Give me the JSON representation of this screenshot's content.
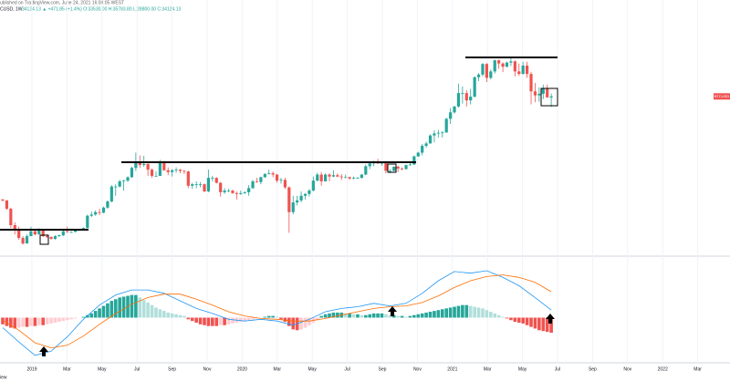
{
  "header": {
    "published": "ublished on TradingView.com, June 24, 2021 16:08:05 WEST",
    "symbol": "CUSD, 1W",
    "quote": "34124.13 ▲ +471.85 (+1.4%) O:33530.00 H:35783.80 L:28800.00 C:34124.13"
  },
  "footer": "iew",
  "chart_data": {
    "type": "candlestick",
    "log_scale": true,
    "ylim": [
      2650,
      161000
    ],
    "up_color": "#26a69a",
    "down_color": "#ef5350",
    "price_label": "BTCUSD",
    "candles": [
      [
        6500,
        6550,
        6300,
        6400
      ],
      [
        6400,
        6450,
        5500,
        5600
      ],
      [
        5600,
        5700,
        4100,
        4300
      ],
      [
        4300,
        4500,
        3700,
        4000
      ],
      [
        4000,
        4200,
        3400,
        3500
      ],
      [
        3500,
        3600,
        3150,
        3200
      ],
      [
        3200,
        3700,
        3200,
        3600
      ],
      [
        3600,
        4200,
        3600,
        3900
      ],
      [
        3900,
        4000,
        3650,
        3700
      ],
      [
        3700,
        4100,
        3700,
        4000
      ],
      [
        4000,
        4050,
        3550,
        3600
      ],
      [
        3600,
        3700,
        3500,
        3550
      ],
      [
        3550,
        3600,
        3400,
        3450
      ],
      [
        3450,
        3650,
        3400,
        3600
      ],
      [
        3600,
        3700,
        3550,
        3650
      ],
      [
        3650,
        4000,
        3600,
        3900
      ],
      [
        3900,
        4200,
        3800,
        3850
      ],
      [
        3850,
        3900,
        3800,
        3850
      ],
      [
        3850,
        4000,
        3840,
        3950
      ],
      [
        3950,
        4050,
        3900,
        4000
      ],
      [
        4000,
        4150,
        3950,
        4100
      ],
      [
        4100,
        5100,
        4100,
        5000
      ],
      [
        5000,
        5350,
        4900,
        5100
      ],
      [
        5100,
        5450,
        5000,
        5300
      ],
      [
        5300,
        5600,
        5050,
        5250
      ],
      [
        5250,
        5800,
        5200,
        5700
      ],
      [
        5700,
        6400,
        5600,
        6300
      ],
      [
        6300,
        8200,
        6200,
        8000
      ],
      [
        8000,
        8300,
        6900,
        8000
      ],
      [
        8000,
        8900,
        7900,
        8700
      ],
      [
        8700,
        8900,
        7500,
        8800
      ],
      [
        8800,
        9400,
        8600,
        9300
      ],
      [
        9300,
        11000,
        9200,
        10800
      ],
      [
        10800,
        13800,
        10300,
        12000
      ],
      [
        12000,
        13200,
        10800,
        11300
      ],
      [
        11300,
        13100,
        11000,
        11500
      ],
      [
        11500,
        11600,
        9500,
        10500
      ],
      [
        10500,
        10700,
        9200,
        9500
      ],
      [
        9500,
        10200,
        9400,
        9500
      ],
      [
        9500,
        12300,
        9500,
        11800
      ],
      [
        11800,
        12100,
        10300,
        10400
      ],
      [
        10400,
        10900,
        9600,
        10100
      ],
      [
        10100,
        10600,
        9400,
        10400
      ],
      [
        10400,
        10900,
        10000,
        10500
      ],
      [
        10500,
        10600,
        9900,
        10300
      ],
      [
        10300,
        10400,
        9800,
        10200
      ],
      [
        10200,
        10300,
        7800,
        8100
      ],
      [
        8100,
        8500,
        7700,
        8300
      ],
      [
        8300,
        8700,
        7800,
        8300
      ],
      [
        8300,
        8600,
        7900,
        8300
      ],
      [
        8300,
        8400,
        7300,
        7400
      ],
      [
        7400,
        10500,
        7300,
        9200
      ],
      [
        9200,
        9500,
        8700,
        9200
      ],
      [
        9200,
        9300,
        8400,
        8500
      ],
      [
        8500,
        8600,
        6800,
        7300
      ],
      [
        7300,
        7800,
        7100,
        7500
      ],
      [
        7500,
        7700,
        7300,
        7500
      ],
      [
        7500,
        7600,
        7100,
        7200
      ],
      [
        7200,
        7400,
        6500,
        7100
      ],
      [
        7100,
        7500,
        7000,
        7200
      ],
      [
        7200,
        7400,
        7100,
        7300
      ],
      [
        7300,
        8200,
        6900,
        7800
      ],
      [
        7800,
        8900,
        7700,
        8700
      ],
      [
        8700,
        9200,
        8500,
        8600
      ],
      [
        8600,
        9400,
        8300,
        9300
      ],
      [
        9300,
        9900,
        9200,
        9800
      ],
      [
        9800,
        10500,
        9700,
        9900
      ],
      [
        9900,
        10200,
        9300,
        9700
      ],
      [
        9700,
        9800,
        8500,
        8800
      ],
      [
        8800,
        9200,
        8400,
        8900
      ],
      [
        8900,
        9200,
        7700,
        7900
      ],
      [
        7900,
        8000,
        3800,
        5300
      ],
      [
        5300,
        6900,
        5100,
        6200
      ],
      [
        6200,
        6900,
        5900,
        6400
      ],
      [
        6400,
        7400,
        6200,
        6900
      ],
      [
        6900,
        7200,
        6500,
        7100
      ],
      [
        7100,
        7700,
        6800,
        7500
      ],
      [
        7500,
        9400,
        7400,
        8800
      ],
      [
        8800,
        10000,
        8700,
        9700
      ],
      [
        9700,
        10100,
        8100,
        8700
      ],
      [
        8700,
        9900,
        8700,
        9700
      ],
      [
        9700,
        9900,
        8700,
        9400
      ],
      [
        9400,
        10400,
        9300,
        9600
      ],
      [
        9600,
        9900,
        9300,
        9400
      ],
      [
        9400,
        9800,
        8900,
        9300
      ],
      [
        9300,
        9700,
        9200,
        9300
      ],
      [
        9300,
        9400,
        8900,
        9100
      ],
      [
        9100,
        9400,
        9000,
        9200
      ],
      [
        9200,
        9300,
        9100,
        9200
      ],
      [
        9200,
        9800,
        9100,
        9700
      ],
      [
        9700,
        11400,
        9600,
        11100
      ],
      [
        11100,
        12000,
        10600,
        11600
      ],
      [
        11600,
        12100,
        11100,
        11800
      ],
      [
        11800,
        12500,
        11500,
        11600
      ],
      [
        11600,
        11800,
        11200,
        11700
      ],
      [
        11700,
        12000,
        9900,
        10300
      ],
      [
        10300,
        10600,
        9900,
        10300
      ],
      [
        10300,
        11100,
        10200,
        11000
      ],
      [
        11000,
        11200,
        10100,
        10700
      ],
      [
        10700,
        10900,
        10400,
        10600
      ],
      [
        10600,
        11400,
        10500,
        11300
      ],
      [
        11300,
        11700,
        11200,
        11400
      ],
      [
        11400,
        13200,
        11300,
        13000
      ],
      [
        13000,
        14000,
        12900,
        13800
      ],
      [
        13800,
        15900,
        13200,
        15400
      ],
      [
        15400,
        16500,
        14900,
        16000
      ],
      [
        16000,
        18500,
        16000,
        18200
      ],
      [
        18200,
        19800,
        16300,
        18800
      ],
      [
        18800,
        19900,
        17600,
        19000
      ],
      [
        19000,
        19500,
        17600,
        19100
      ],
      [
        19100,
        24200,
        19000,
        23800
      ],
      [
        23800,
        28300,
        21900,
        26400
      ],
      [
        26400,
        29300,
        25900,
        29000
      ],
      [
        29000,
        41900,
        28600,
        36000
      ],
      [
        36000,
        40100,
        30400,
        36000
      ],
      [
        36000,
        37800,
        29000,
        32000
      ],
      [
        32000,
        38500,
        30000,
        34000
      ],
      [
        34000,
        47000,
        33500,
        46500
      ],
      [
        46500,
        49700,
        43700,
        48500
      ],
      [
        48500,
        58300,
        47000,
        57500
      ],
      [
        57500,
        58300,
        43000,
        46000
      ],
      [
        46000,
        52600,
        44900,
        51000
      ],
      [
        51000,
        61800,
        49300,
        61000
      ],
      [
        61000,
        61700,
        53300,
        58000
      ],
      [
        58000,
        59000,
        50400,
        55000
      ],
      [
        55000,
        59800,
        54600,
        58800
      ],
      [
        58800,
        64800,
        55600,
        60000
      ],
      [
        60000,
        61000,
        47000,
        51000
      ],
      [
        51000,
        57900,
        47500,
        49000
      ],
      [
        49000,
        59500,
        48500,
        56000
      ],
      [
        56000,
        59600,
        46000,
        49000
      ],
      [
        49000,
        50700,
        30000,
        37000
      ],
      [
        37000,
        42400,
        31100,
        34700
      ],
      [
        34700,
        39500,
        31300,
        35600
      ],
      [
        35600,
        41300,
        32700,
        39000
      ],
      [
        39000,
        41300,
        33300,
        33650
      ],
      [
        33530,
        35783.8,
        28800,
        34124.13
      ]
    ],
    "x_labels": [
      "2019",
      "Mar",
      "May",
      "Jul",
      "Sep",
      "Nov",
      "2020",
      "Mar",
      "May",
      "Jul",
      "Sep",
      "Nov",
      "2021",
      "Mar",
      "May",
      "Jul",
      "Sep",
      "Nov",
      "2022",
      "Mar"
    ],
    "macd": {
      "ylim": [
        -56,
        69
      ],
      "histogram": [
        -8,
        -10,
        -12,
        -13,
        -12,
        -11,
        -11,
        -10,
        -10,
        -9,
        -9,
        -8,
        -7,
        -6,
        -5,
        -4,
        -3,
        -2,
        -1,
        0,
        1,
        3,
        5,
        8,
        11,
        14,
        17,
        20,
        22,
        24,
        25,
        26,
        27,
        27,
        24,
        21,
        18,
        15,
        12,
        10,
        8,
        6,
        5,
        4,
        3,
        2,
        -2,
        -4,
        -6,
        -8,
        -9,
        -10,
        -10,
        -10,
        -9,
        -9,
        -8,
        -7,
        -6,
        -5,
        -4,
        -3,
        -2,
        -1,
        0,
        1,
        2,
        2,
        1,
        -2,
        -5,
        -10,
        -14,
        -15,
        -14,
        -12,
        -9,
        -6,
        -3,
        2,
        4,
        5,
        6,
        6,
        6,
        5,
        5,
        4,
        4,
        3,
        3,
        4,
        5,
        5,
        5,
        4,
        3,
        3,
        2,
        2,
        1,
        2,
        3,
        4,
        5,
        6,
        7,
        8,
        9,
        10,
        11,
        12,
        13,
        14,
        15,
        15,
        14,
        13,
        12,
        11,
        9,
        7,
        5,
        3,
        1,
        -1,
        -3,
        -5,
        -6,
        -7,
        -9,
        -11,
        -13,
        -15,
        -16,
        -17,
        -18
      ],
      "colors": {
        "pos_up": "#26a69a",
        "pos_down": "#b2dfdb",
        "neg_down": "#ef5350",
        "neg_up": "#ffcdd2"
      },
      "series": [
        {
          "color": "#2196f3",
          "values": [
            -12,
            -29,
            -45,
            -40,
            -23,
            -2,
            15,
            27,
            33,
            33,
            29,
            20,
            11,
            5,
            -2,
            -4,
            -2,
            -4,
            -9,
            -2,
            7,
            11,
            13,
            17,
            14,
            17,
            29,
            44,
            55,
            53,
            56,
            48,
            38,
            24,
            9
          ]
        },
        {
          "color": "#ff6d00",
          "values": [
            -3,
            -15,
            -30,
            -36,
            -33,
            -22,
            -8,
            5,
            16,
            24,
            28,
            28,
            22,
            15,
            7,
            2,
            -1,
            -2,
            -4,
            -4,
            -1,
            3,
            7,
            11,
            13,
            14,
            18,
            26,
            36,
            44,
            49,
            51,
            48,
            42,
            31
          ]
        }
      ]
    }
  }
}
